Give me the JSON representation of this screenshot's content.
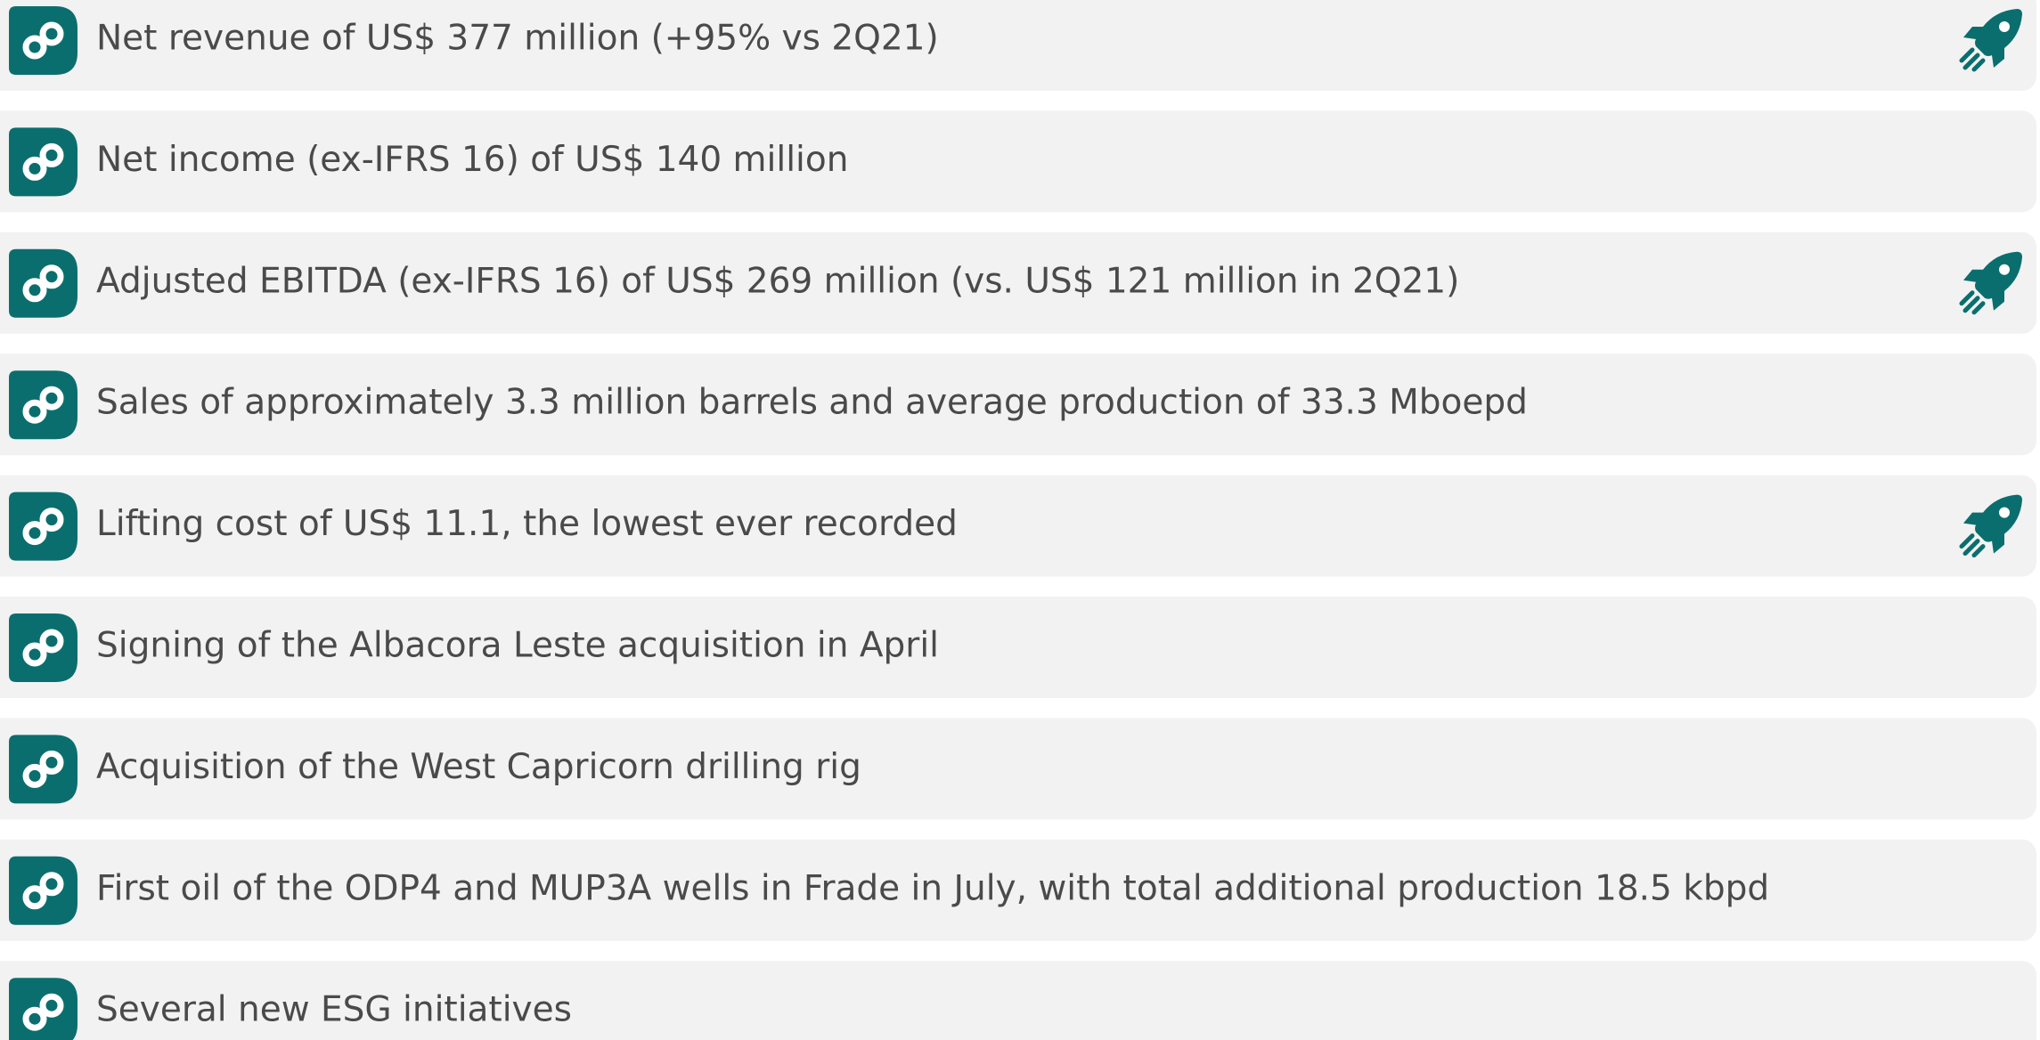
{
  "items": [
    {
      "text": "Net revenue of US$ 377 million (+95% vs 2Q21)",
      "highlighted": true
    },
    {
      "text": "Net income (ex-IFRS 16) of US$ 140 million",
      "highlighted": false
    },
    {
      "text": "Adjusted EBITDA (ex-IFRS 16) of US$ 269 million (vs. US$ 121 million in 2Q21)",
      "highlighted": true
    },
    {
      "text": "Sales of approximately 3.3 million barrels and average production of 33.3 Mboepd",
      "highlighted": false
    },
    {
      "text": "Lifting cost of US$ 11.1, the lowest ever recorded",
      "highlighted": true
    },
    {
      "text": "Signing of the Albacora Leste acquisition in April",
      "highlighted": false
    },
    {
      "text": "Acquisition of the West Capricorn drilling rig",
      "highlighted": false
    },
    {
      "text": "First oil of the ODP4 and MUP3A wells in Frade in July, with total additional production 18.5 kbpd",
      "highlighted": false
    },
    {
      "text": "Several new ESG initiatives",
      "highlighted": false
    }
  ]
}
